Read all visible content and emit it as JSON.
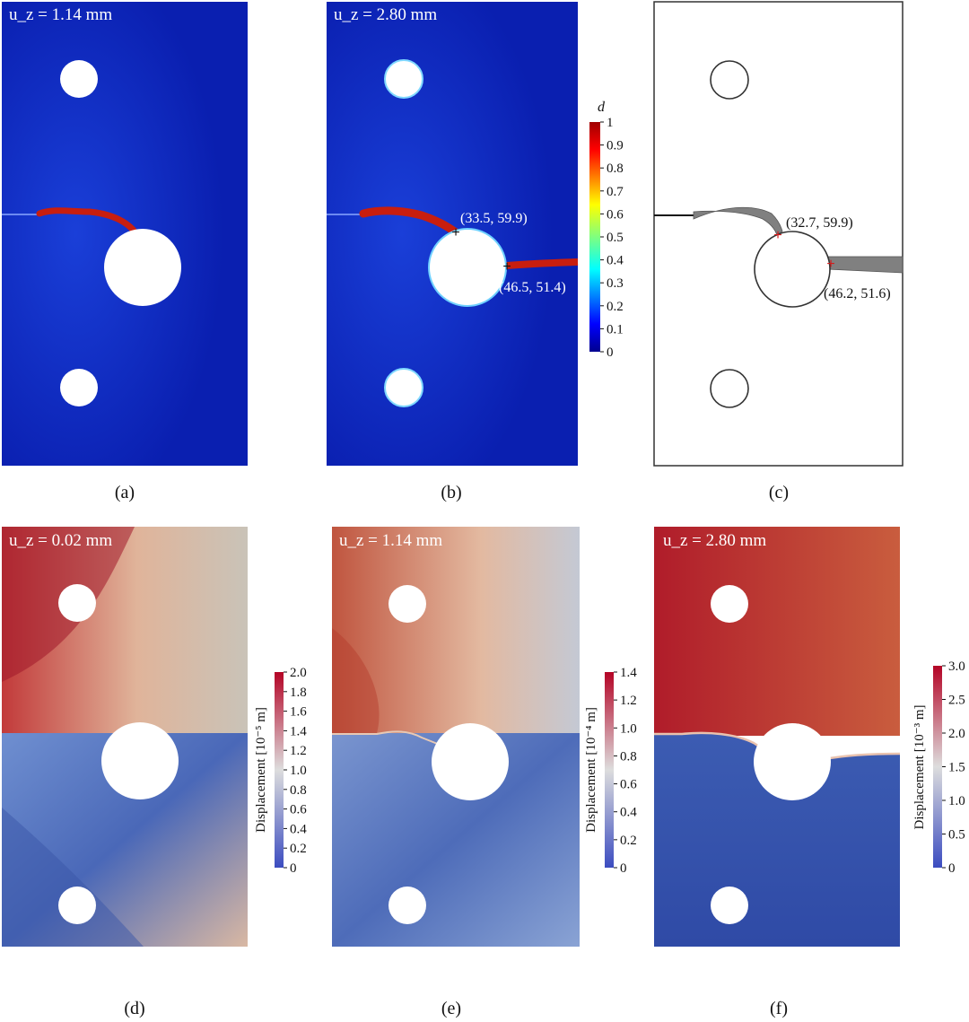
{
  "panels": {
    "a": {
      "label": "(a)",
      "uz": "u_z = 1.14 mm"
    },
    "b": {
      "label": "(b)",
      "uz": "u_z = 2.80 mm",
      "point1": "(33.5, 59.9)",
      "point2": "(46.5, 51.4)"
    },
    "c": {
      "label": "(c)",
      "point1": "(32.7, 59.9)",
      "point2": "(46.2, 51.6)"
    },
    "d": {
      "label": "(d)",
      "uz": "u_z = 0.02 mm"
    },
    "e": {
      "label": "(e)",
      "uz": "u_z = 1.14 mm"
    },
    "f": {
      "label": "(f)",
      "uz": "u_z = 2.80 mm"
    }
  },
  "colorbars": {
    "damage": {
      "title": "d",
      "ticks": [
        "1",
        "0.9",
        "0.8",
        "0.7",
        "0.6",
        "0.5",
        "0.4",
        "0.3",
        "0.2",
        "0.1",
        "0"
      ]
    },
    "disp_d": {
      "label": "Displacement [10⁻⁵ m]",
      "ticks": [
        "2.0",
        "1.8",
        "1.6",
        "1.4",
        "1.2",
        "1.0",
        "0.8",
        "0.6",
        "0.4",
        "0.2",
        "0"
      ]
    },
    "disp_e": {
      "label": "Displacement [10⁻⁴ m]",
      "ticks": [
        "1.4",
        "1.2",
        "1.0",
        "0.8",
        "0.6",
        "0.4",
        "0.2",
        "0"
      ]
    },
    "disp_f": {
      "label": "Displacement [10⁻³ m]",
      "ticks": [
        "3.0",
        "2.5",
        "2.0",
        "1.5",
        "1.0",
        "0.5",
        "0"
      ]
    }
  },
  "colors": {
    "damage_bg": "#0a1fb0",
    "crack": "#c81e0f",
    "disp_high": "#b51f2b",
    "disp_low": "#3b5aa8"
  }
}
